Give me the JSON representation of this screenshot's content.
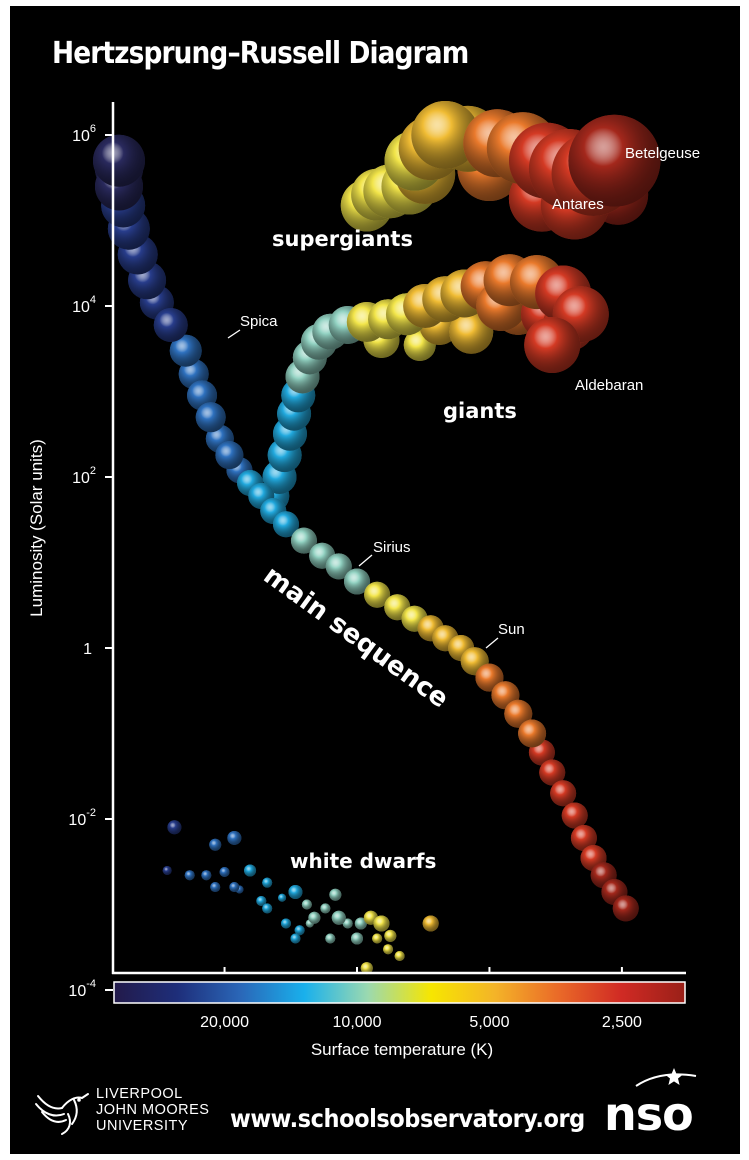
{
  "title": "Hertzsprung–Russell Diagram",
  "footer": {
    "url": "www.schoolsobservatory.org",
    "university_lines": [
      "LIVERPOOL",
      "JOHN MOORES",
      "UNIVERSITY"
    ],
    "nso_logo_text": "nso"
  },
  "chart_data": {
    "type": "scatter",
    "title": "Hertzsprung–Russell Diagram",
    "ylabel": "Luminosity (Solar units)",
    "xlabel": "Surface temperature (K)",
    "y_scale": "log",
    "ylim": [
      0.0001,
      2000000
    ],
    "y_ticks": [
      {
        "value": 1000000,
        "base": "10",
        "exp": "6"
      },
      {
        "value": 10000,
        "base": "10",
        "exp": "4"
      },
      {
        "value": 100,
        "base": "10",
        "exp": "2"
      },
      {
        "value": 1,
        "base": "1",
        "exp": ""
      },
      {
        "value": 0.01,
        "base": "10",
        "exp": "-2"
      },
      {
        "value": 0.0001,
        "base": "10",
        "exp": "-4"
      }
    ],
    "x_scale": "log, reversed (hot stars on the left)",
    "xlim": [
      40000,
      2000
    ],
    "x_ticks": [
      {
        "value": 20000,
        "label": "20,000"
      },
      {
        "value": 10000,
        "label": "10,000"
      },
      {
        "value": 5000,
        "label": "5,000"
      },
      {
        "value": 2500,
        "label": "2,500"
      }
    ],
    "colorbar_stops": [
      "#221a4a",
      "#1e2e7a",
      "#2a67b8",
      "#19b0ec",
      "#9bd9b0",
      "#f7e600",
      "#f4b428",
      "#ea6a28",
      "#d02a24",
      "#9a2018"
    ],
    "star_colors": [
      "#2a2a5e",
      "#283d8c",
      "#2f72c0",
      "#22aadf",
      "#92d2c2",
      "#f2e54a",
      "#f0bc34",
      "#ea7a2c",
      "#d43a24",
      "#a4281c"
    ],
    "groups": [
      {
        "name": "main sequence",
        "label": "main sequence",
        "points": [
          [
            40000,
            500000,
            26
          ],
          [
            38000,
            400000,
            24
          ],
          [
            36000,
            250000,
            24
          ],
          [
            34000,
            150000,
            22
          ],
          [
            33000,
            80000,
            21
          ],
          [
            31500,
            40000,
            20
          ],
          [
            30000,
            20000,
            19
          ],
          [
            28500,
            11000,
            17
          ],
          [
            26500,
            6000,
            17
          ],
          [
            24500,
            3000,
            16
          ],
          [
            23500,
            1600,
            15
          ],
          [
            22500,
            900,
            15
          ],
          [
            21500,
            500,
            15
          ],
          [
            20500,
            280,
            14
          ],
          [
            19500,
            180,
            14
          ],
          [
            18500,
            120,
            13
          ],
          [
            17500,
            85,
            13
          ],
          [
            16500,
            60,
            13
          ],
          [
            15500,
            40,
            13
          ],
          [
            14500,
            28,
            13
          ],
          [
            13200,
            18,
            13
          ],
          [
            12000,
            12,
            13
          ],
          [
            11000,
            9,
            13
          ],
          [
            10000,
            6,
            13
          ],
          [
            9000,
            4.2,
            13
          ],
          [
            8100,
            3,
            13
          ],
          [
            7400,
            2.2,
            13
          ],
          [
            6800,
            1.7,
            13
          ],
          [
            6300,
            1.3,
            13
          ],
          [
            5800,
            1,
            13
          ],
          [
            5400,
            0.7,
            14
          ],
          [
            5000,
            0.45,
            14
          ],
          [
            4600,
            0.28,
            14
          ],
          [
            4300,
            0.17,
            14
          ],
          [
            4000,
            0.1,
            14
          ],
          [
            3800,
            0.06,
            13
          ],
          [
            3600,
            0.035,
            13
          ],
          [
            3400,
            0.02,
            13
          ],
          [
            3200,
            0.011,
            13
          ],
          [
            3050,
            0.006,
            13
          ],
          [
            2900,
            0.0035,
            13
          ],
          [
            2750,
            0.0022,
            13
          ],
          [
            2600,
            0.0014,
            13
          ],
          [
            2450,
            0.0009,
            13
          ]
        ]
      },
      {
        "name": "giants",
        "label": "giants",
        "points": [
          [
            15500,
            60,
            16
          ],
          [
            15000,
            100,
            17
          ],
          [
            14600,
            180,
            17
          ],
          [
            14200,
            320,
            17
          ],
          [
            13900,
            550,
            17
          ],
          [
            13600,
            900,
            17
          ],
          [
            13300,
            1500,
            17
          ],
          [
            12800,
            2500,
            17
          ],
          [
            12200,
            3800,
            18
          ],
          [
            11500,
            5000,
            18
          ],
          [
            10500,
            6000,
            19
          ],
          [
            9500,
            6500,
            20
          ],
          [
            8500,
            7000,
            20
          ],
          [
            7700,
            8000,
            21
          ],
          [
            7000,
            10000,
            22
          ],
          [
            6300,
            12000,
            23
          ],
          [
            5700,
            14000,
            24
          ],
          [
            5100,
            17000,
            25
          ],
          [
            4500,
            20000,
            26
          ],
          [
            3900,
            19000,
            27
          ],
          [
            3400,
            14000,
            28
          ],
          [
            3100,
            8000,
            28
          ],
          [
            3700,
            8000,
            26
          ],
          [
            4300,
            9000,
            25
          ],
          [
            6500,
            6000,
            20
          ],
          [
            8800,
            4000,
            18
          ],
          [
            7200,
            3500,
            16
          ],
          [
            5500,
            5000,
            22
          ],
          [
            4700,
            10000,
            25
          ],
          [
            3300,
            6000,
            26
          ],
          [
            3600,
            3500,
            28
          ]
        ]
      },
      {
        "name": "supergiants",
        "label": "supergiants",
        "points": [
          [
            9500,
            150000,
            26
          ],
          [
            9000,
            200000,
            26
          ],
          [
            8400,
            220000,
            27
          ],
          [
            7600,
            250000,
            28
          ],
          [
            7000,
            350000,
            30
          ],
          [
            6800,
            700000,
            32
          ],
          [
            6300,
            1000000,
            34
          ],
          [
            5600,
            900000,
            33
          ],
          [
            4800,
            800000,
            34
          ],
          [
            4200,
            700000,
            36
          ],
          [
            3700,
            500000,
            38
          ],
          [
            3300,
            400000,
            40
          ],
          [
            2900,
            350000,
            42
          ],
          [
            2600,
            500000,
            46
          ],
          [
            3200,
            150000,
            34
          ],
          [
            3800,
            180000,
            33
          ],
          [
            2550,
            200000,
            30
          ],
          [
            7400,
            500000,
            30
          ],
          [
            5000,
            400000,
            32
          ]
        ]
      },
      {
        "name": "white dwarfs",
        "label": "white dwarfs",
        "points": [
          [
            26000,
            0.008,
            7
          ],
          [
            21000,
            0.005,
            6
          ],
          [
            19000,
            0.006,
            7
          ],
          [
            27000,
            0.0025,
            4.5
          ],
          [
            24000,
            0.0022,
            5
          ],
          [
            22000,
            0.0022,
            5
          ],
          [
            20000,
            0.0024,
            5
          ],
          [
            17500,
            0.0025,
            6
          ],
          [
            19000,
            0.0016,
            5
          ],
          [
            21000,
            0.0016,
            5
          ],
          [
            16000,
            0.0018,
            5
          ],
          [
            18500,
            0.0015,
            4
          ],
          [
            13800,
            0.0014,
            7
          ],
          [
            14800,
            0.0012,
            4
          ],
          [
            16500,
            0.0011,
            5
          ],
          [
            16000,
            0.0009,
            5
          ],
          [
            13000,
            0.001,
            5
          ],
          [
            11800,
            0.0009,
            5
          ],
          [
            11200,
            0.0013,
            6
          ],
          [
            12500,
            0.0007,
            6
          ],
          [
            11000,
            0.0007,
            7
          ],
          [
            10500,
            0.0006,
            5
          ],
          [
            9800,
            0.0006,
            6
          ],
          [
            9300,
            0.0007,
            7
          ],
          [
            8800,
            0.0006,
            8
          ],
          [
            8400,
            0.00043,
            6
          ],
          [
            12800,
            0.0006,
            4
          ],
          [
            14500,
            0.0006,
            5
          ],
          [
            13500,
            0.0005,
            5
          ],
          [
            11500,
            0.0004,
            5
          ],
          [
            10000,
            0.0004,
            6
          ],
          [
            9000,
            0.0004,
            5
          ],
          [
            13800,
            0.0004,
            5
          ],
          [
            8500,
            0.0003,
            5
          ],
          [
            8000,
            0.00025,
            5
          ],
          [
            9500,
            0.00018,
            6
          ],
          [
            6800,
            0.0006,
            8
          ],
          [
            7200,
            0.0001,
            8
          ],
          [
            5600,
            0.0001,
            8
          ]
        ]
      }
    ],
    "star_labels": [
      {
        "name": "Spica",
        "x": 23000,
        "y": 9000
      },
      {
        "name": "Sirius",
        "x": 9800,
        "y": 16
      },
      {
        "name": "Sun",
        "x": 5800,
        "y": 1
      },
      {
        "name": "Aldebaran",
        "x": 3900,
        "y": 500
      },
      {
        "name": "Antares",
        "x": 3500,
        "y": 300000
      },
      {
        "name": "Betelgeuse",
        "x": 3200,
        "y": 600000
      }
    ]
  }
}
